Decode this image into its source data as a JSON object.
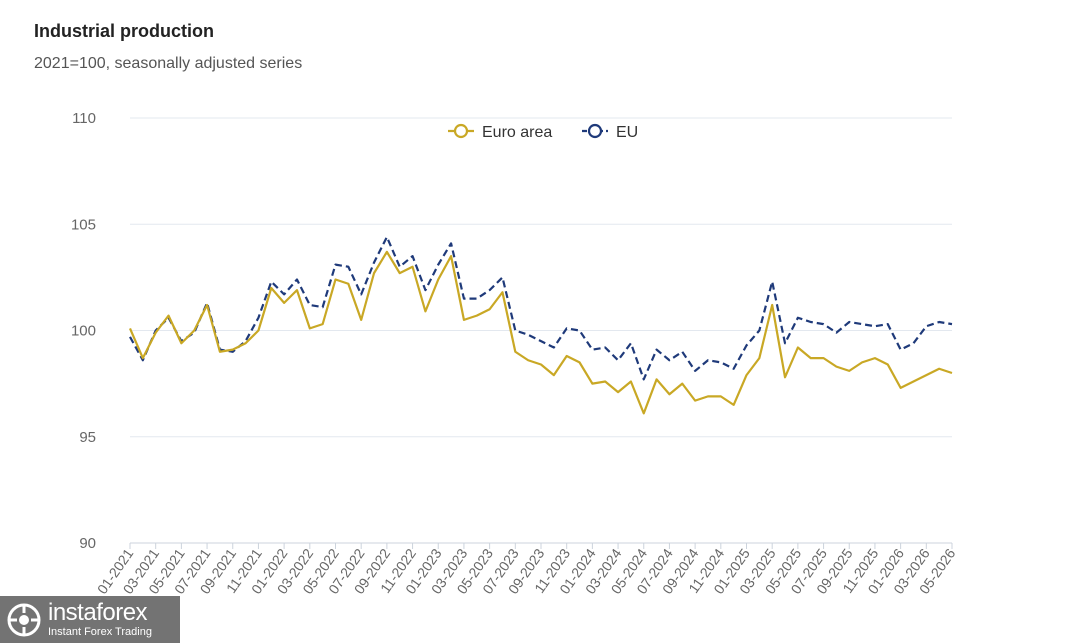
{
  "header": {
    "title": "Industrial production",
    "subtitle": "2021=100, seasonally adjusted series"
  },
  "watermark": {
    "name": "instaforex",
    "tagline": "Instant Forex Trading"
  },
  "colors": {
    "euro_area": "#c9a825",
    "eu": "#1f3a7a",
    "grid": "#e3e8ef",
    "tick": "#666666"
  },
  "chart_data": {
    "type": "line",
    "title": "Industrial production",
    "subtitle": "2021=100, seasonally adjusted series",
    "xlabel": "",
    "ylabel": "",
    "ylim": [
      90,
      110
    ],
    "yticks": [
      90,
      95,
      100,
      105,
      110
    ],
    "grid": true,
    "legend_position": "top-center",
    "x": [
      "01-2021",
      "02-2021",
      "03-2021",
      "04-2021",
      "05-2021",
      "06-2021",
      "07-2021",
      "08-2021",
      "09-2021",
      "10-2021",
      "11-2021",
      "12-2021",
      "01-2022",
      "02-2022",
      "03-2022",
      "04-2022",
      "05-2022",
      "06-2022",
      "07-2022",
      "08-2022",
      "09-2022",
      "10-2022",
      "11-2022",
      "12-2022",
      "01-2023",
      "02-2023",
      "03-2023",
      "04-2023",
      "05-2023",
      "06-2023",
      "07-2023",
      "08-2023",
      "09-2023",
      "10-2023",
      "11-2023",
      "12-2023",
      "01-2024",
      "02-2024",
      "03-2024",
      "04-2024",
      "05-2024",
      "06-2024",
      "07-2024",
      "08-2024",
      "09-2024",
      "10-2024",
      "11-2024",
      "12-2024",
      "01-2025",
      "02-2025",
      "03-2025",
      "04-2025",
      "05-2025",
      "06-2025",
      "07-2025",
      "08-2025",
      "09-2025",
      "10-2025",
      "11-2025",
      "12-2025",
      "01-2026",
      "02-2026",
      "03-2026",
      "04-2026",
      "05-2026"
    ],
    "x_tick_labels": [
      "01-2021",
      "03-2021",
      "05-2021",
      "07-2021",
      "09-2021",
      "11-2021",
      "01-2022",
      "03-2022",
      "05-2022",
      "07-2022",
      "09-2022",
      "11-2022",
      "01-2023",
      "03-2023",
      "05-2023",
      "07-2023",
      "09-2023",
      "11-2023",
      "01-2024",
      "03-2024",
      "05-2024",
      "07-2024",
      "09-2024",
      "11-2024",
      "01-2025",
      "03-2025",
      "05-2025",
      "07-2025",
      "09-2025",
      "11-2025",
      "01-2026",
      "03-2026",
      "05-2026"
    ],
    "series": [
      {
        "name": "Euro area",
        "color": "#c9a825",
        "style": "solid",
        "values": [
          100.1,
          98.7,
          99.9,
          100.7,
          99.4,
          100.0,
          101.2,
          99.0,
          99.1,
          99.4,
          100.0,
          102.0,
          101.3,
          101.9,
          100.1,
          100.3,
          102.4,
          102.2,
          100.5,
          102.7,
          103.7,
          102.7,
          103.0,
          100.9,
          102.4,
          103.5,
          100.5,
          100.7,
          101.0,
          101.8,
          99.0,
          98.6,
          98.4,
          97.9,
          98.8,
          98.5,
          97.5,
          97.6,
          97.1,
          97.6,
          96.1,
          97.7,
          97.0,
          97.5,
          96.7,
          96.9,
          96.9,
          96.5,
          97.9,
          98.7,
          101.2,
          97.8,
          99.2,
          98.7,
          98.7,
          98.3,
          98.1,
          98.5,
          98.7,
          98.4,
          97.3,
          97.6,
          97.9,
          98.2,
          98.0
        ]
      },
      {
        "name": "EU",
        "color": "#1f3a7a",
        "style": "dashed",
        "values": [
          99.7,
          98.6,
          100.0,
          100.6,
          99.5,
          99.9,
          101.3,
          99.1,
          99.0,
          99.5,
          100.6,
          102.3,
          101.7,
          102.4,
          101.2,
          101.1,
          103.1,
          103.0,
          101.7,
          103.2,
          104.4,
          103.0,
          103.5,
          101.9,
          103.1,
          104.1,
          101.5,
          101.5,
          101.9,
          102.5,
          100.0,
          99.8,
          99.5,
          99.2,
          100.1,
          100.0,
          99.1,
          99.2,
          98.6,
          99.4,
          97.7,
          99.1,
          98.6,
          99.0,
          98.1,
          98.6,
          98.5,
          98.2,
          99.3,
          100.0,
          102.3,
          99.4,
          100.6,
          100.4,
          100.3,
          99.9,
          100.4,
          100.3,
          100.2,
          100.3,
          99.1,
          99.4,
          100.2,
          100.4,
          100.3
        ]
      }
    ]
  }
}
